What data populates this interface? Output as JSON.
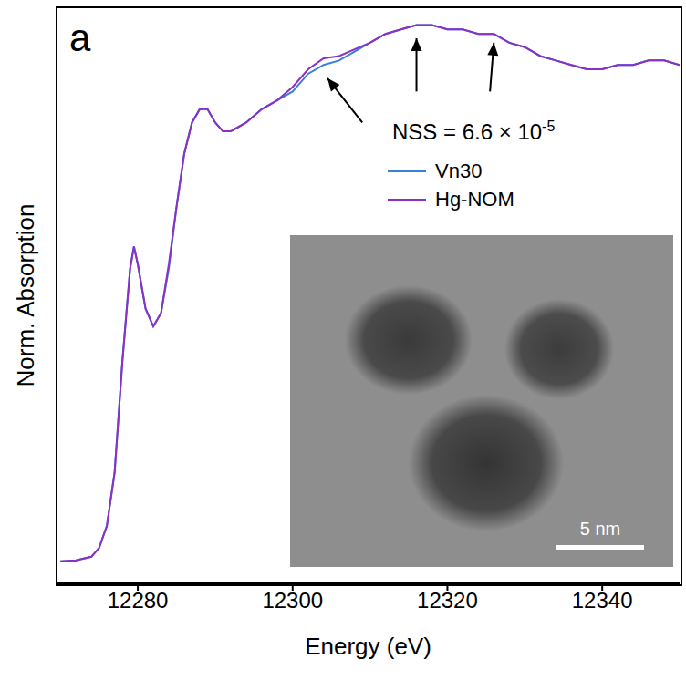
{
  "chart_data": {
    "type": "line",
    "panel_label": "a",
    "x_label": "Energy (eV)",
    "y_label": "Norm. Absorption",
    "tick_labels": "x",
    "xlim": [
      12269.5,
      12350
    ],
    "xticks": [
      12280,
      12300,
      12320,
      12340
    ],
    "ylim": [
      -0.05,
      1.25
    ],
    "legend": "upper right",
    "annotation": {
      "text": "NSS = 6.6 × 10",
      "superscript": "-5"
    },
    "arrows": [
      {
        "from": [
          12309,
          0.99
        ],
        "to": [
          12304.5,
          1.09
        ]
      },
      {
        "from": [
          12316,
          1.06
        ],
        "to": [
          12316,
          1.18
        ]
      },
      {
        "from": [
          12325.5,
          1.06
        ],
        "to": [
          12326,
          1.17
        ]
      }
    ],
    "inset_scale_bar": "5 nm",
    "x": [
      12270,
      12272,
      12274,
      12275,
      12276,
      12277,
      12278,
      12279,
      12279.5,
      12280,
      12281,
      12282,
      12283,
      12284,
      12285,
      12286,
      12287,
      12288,
      12289,
      12290,
      12291,
      12292,
      12294,
      12296,
      12298,
      12300,
      12302,
      12304,
      12306,
      12308,
      12310,
      12312,
      12314,
      12316,
      12318,
      12320,
      12322,
      12324,
      12326,
      12328,
      12330,
      12332,
      12334,
      12336,
      12338,
      12340,
      12342,
      12344,
      12346,
      12348,
      12350
    ],
    "series": [
      {
        "name": "Vn30",
        "color": "#3a80d6",
        "values": [
          0.0,
          0.002,
          0.01,
          0.03,
          0.08,
          0.2,
          0.45,
          0.66,
          0.71,
          0.67,
          0.57,
          0.53,
          0.56,
          0.66,
          0.8,
          0.92,
          0.99,
          1.02,
          1.02,
          0.99,
          0.97,
          0.97,
          0.99,
          1.02,
          1.04,
          1.06,
          1.1,
          1.12,
          1.13,
          1.15,
          1.17,
          1.19,
          1.2,
          1.21,
          1.21,
          1.2,
          1.2,
          1.19,
          1.19,
          1.17,
          1.16,
          1.14,
          1.13,
          1.12,
          1.11,
          1.11,
          1.12,
          1.12,
          1.13,
          1.13,
          1.12
        ]
      },
      {
        "name": "Hg-NOM",
        "color": "#8a2fc8",
        "values": [
          0.0,
          0.002,
          0.01,
          0.03,
          0.08,
          0.2,
          0.45,
          0.66,
          0.71,
          0.67,
          0.57,
          0.53,
          0.56,
          0.67,
          0.8,
          0.92,
          0.99,
          1.02,
          1.02,
          0.99,
          0.97,
          0.97,
          0.99,
          1.02,
          1.04,
          1.07,
          1.11,
          1.135,
          1.14,
          1.155,
          1.17,
          1.19,
          1.2,
          1.21,
          1.21,
          1.2,
          1.2,
          1.19,
          1.19,
          1.17,
          1.16,
          1.14,
          1.13,
          1.12,
          1.11,
          1.11,
          1.12,
          1.12,
          1.13,
          1.13,
          1.12
        ]
      }
    ]
  }
}
